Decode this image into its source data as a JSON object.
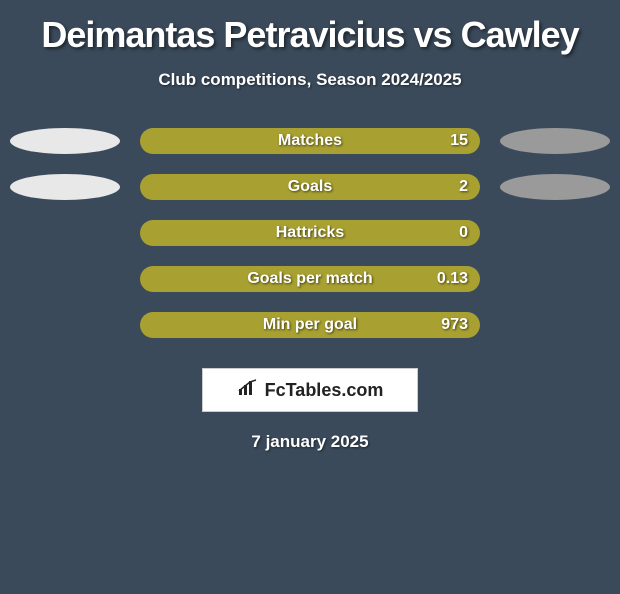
{
  "title": "Deimantas Petravicius vs Cawley",
  "subtitle": "Club competitions, Season 2024/2025",
  "date": "7 january 2025",
  "logo_text": "FcTables.com",
  "background_color": "#3a4a5a",
  "bar_bg_color": "#a8a030",
  "bar_fill_color": "#a8a030",
  "ellipse_left_color": "#e8e8e8",
  "ellipse_right_color": "#9a9a9a",
  "text_color": "#ffffff",
  "stats": [
    {
      "label": "Matches",
      "value": "15",
      "show_ellipses": true,
      "fill_pct": 100
    },
    {
      "label": "Goals",
      "value": "2",
      "show_ellipses": true,
      "fill_pct": 100
    },
    {
      "label": "Hattricks",
      "value": "0",
      "show_ellipses": false,
      "fill_pct": 100
    },
    {
      "label": "Goals per match",
      "value": "0.13",
      "show_ellipses": false,
      "fill_pct": 100
    },
    {
      "label": "Min per goal",
      "value": "973",
      "show_ellipses": false,
      "fill_pct": 100
    }
  ]
}
